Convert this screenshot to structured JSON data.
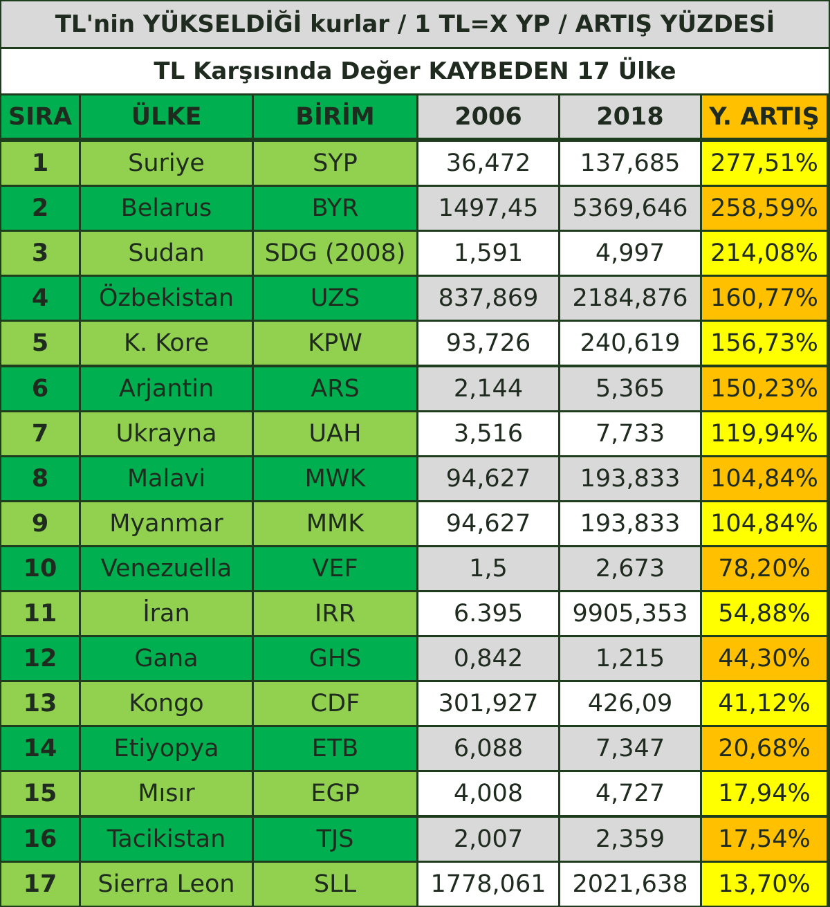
{
  "header": {
    "title": "TL'nin YÜKSELDİĞİ kurlar / 1 TL=X YP / ARTIŞ YÜZDESİ",
    "subtitle": "TL Karşısında Değer KAYBEDEN 17 Ülke"
  },
  "table": {
    "columns": [
      "SIRA",
      "ÜLKE",
      "BİRİM",
      "2006",
      "2018",
      "Y. ARTIŞ"
    ],
    "rows": [
      [
        "1",
        "Suriye",
        "SYP",
        "36,472",
        "137,685",
        "277,51%"
      ],
      [
        "2",
        "Belarus",
        "BYR",
        "1497,45",
        "5369,646",
        "258,59%"
      ],
      [
        "3",
        "Sudan",
        "SDG (2008)",
        "1,591",
        "4,997",
        "214,08%"
      ],
      [
        "4",
        "Özbekistan",
        "UZS",
        "837,869",
        "2184,876",
        "160,77%"
      ],
      [
        "5",
        "K. Kore",
        "KPW",
        "93,726",
        "240,619",
        "156,73%"
      ],
      [
        "6",
        "Arjantin",
        "ARS",
        "2,144",
        "5,365",
        "150,23%"
      ],
      [
        "7",
        "Ukrayna",
        "UAH",
        "3,516",
        "7,733",
        "119,94%"
      ],
      [
        "8",
        "Malavi",
        "MWK",
        "94,627",
        "193,833",
        "104,84%"
      ],
      [
        "9",
        "Myanmar",
        "MMK",
        "94,627",
        "193,833",
        "104,84%"
      ],
      [
        "10",
        "Venezuella",
        "VEF",
        "1,5",
        "2,673",
        "78,20%"
      ],
      [
        "11",
        "İran",
        "IRR",
        "6.395",
        "9905,353",
        "54,88%"
      ],
      [
        "12",
        "Gana",
        "GHS",
        "0,842",
        "1,215",
        "44,30%"
      ],
      [
        "13",
        "Kongo",
        "CDF",
        "301,927",
        "426,09",
        "41,12%"
      ],
      [
        "14",
        "Etiyopya",
        "ETB",
        "6,088",
        "7,347",
        "20,68%"
      ],
      [
        "15",
        "Mısır",
        "EGP",
        "4,008",
        "4,727",
        "17,94%"
      ],
      [
        "16",
        "Tacikistan",
        "TJS",
        "2,007",
        "2,359",
        "17,54%"
      ],
      [
        "17",
        "Sierra Leon",
        "SLL",
        "1778,061",
        "2021,638",
        "13,70%"
      ]
    ]
  }
}
